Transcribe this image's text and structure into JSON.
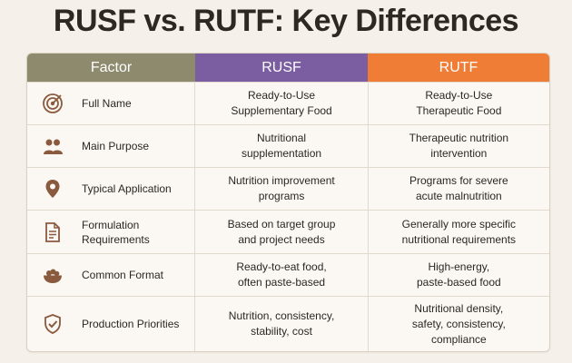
{
  "title": "RUSF vs. RUTF: Key Differences",
  "colors": {
    "factor_header": "#8d8a6e",
    "rusf_header": "#7b5ea1",
    "rutf_header": "#ef7d36",
    "icon": "#8a5a3e"
  },
  "header": {
    "factor": "Factor",
    "rusf": "RUSF",
    "rutf": "RUTF"
  },
  "rows": [
    {
      "icon": "target-icon",
      "factor": "Full Name",
      "rusf": "Ready-to-Use\nSupplementary Food",
      "rutf": "Ready-to-Use\nTherapeutic Food"
    },
    {
      "icon": "people-icon",
      "factor": "Main Purpose",
      "rusf": "Nutritional\nsupplementation",
      "rutf": "Therapeutic nutrition\nintervention"
    },
    {
      "icon": "location-pin-icon",
      "factor": "Typical Application",
      "rusf": "Nutrition improvement\nprograms",
      "rutf": "Programs for severe\nacute malnutrition"
    },
    {
      "icon": "document-icon",
      "factor": "Formulation\nRequirements",
      "rusf": "Based on target group\nand project needs",
      "rutf": "Generally more specific\nnutritional requirements"
    },
    {
      "icon": "food-bowl-icon",
      "factor": "Common Format",
      "rusf": "Ready-to-eat food,\noften paste-based",
      "rutf": "High-energy,\npaste-based food"
    },
    {
      "icon": "shield-check-icon",
      "factor": "Production Priorities",
      "rusf": "Nutrition, consistency,\nstability, cost",
      "rutf": "Nutritional density,\nsafety, consistency,\ncompliance"
    }
  ]
}
